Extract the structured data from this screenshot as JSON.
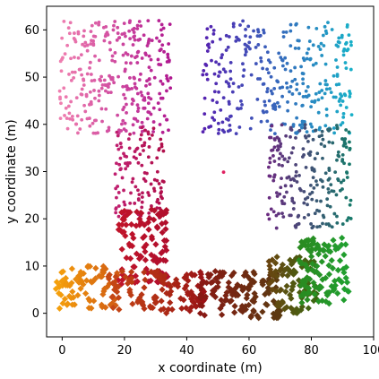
{
  "chart_data": {
    "type": "scatter",
    "title": "",
    "xlabel": "x coordinate (m)",
    "ylabel": "y coordinate (m)",
    "xlim": [
      -5,
      100
    ],
    "ylim": [
      -5,
      65
    ],
    "xticks": [
      0,
      20,
      40,
      60,
      80,
      100
    ],
    "yticks": [
      0,
      10,
      20,
      30,
      40,
      50,
      60
    ],
    "grid": false,
    "legend": "none",
    "description_note": "",
    "clusters": [
      {
        "marker": "circle",
        "color_start": "#f080b0",
        "color_end": "#b01890",
        "x_range": [
          -1,
          35
        ],
        "y_range": [
          38,
          62
        ],
        "count": 320
      },
      {
        "marker": "circle",
        "color_start": "#c02070",
        "color_end": "#b00e4a",
        "x_range": [
          17,
          33
        ],
        "y_range": [
          20,
          40
        ],
        "count": 120
      },
      {
        "marker": "circle",
        "color_start": "#5520b0",
        "color_end": "#18b0c8",
        "x_range": [
          45,
          93
        ],
        "y_range": [
          38,
          62
        ],
        "count": 330
      },
      {
        "marker": "circle",
        "color_start": "#6a2a80",
        "color_end": "#167a6a",
        "x_range": [
          66,
          93
        ],
        "y_range": [
          18,
          40
        ],
        "count": 220
      },
      {
        "marker": "circle",
        "color_start": "#e02060",
        "color_end": "#e02060",
        "x_range": [
          51,
          52
        ],
        "y_range": [
          29,
          30
        ],
        "count": 1
      }
    ],
    "diamond_clusters": [
      {
        "marker": "diamond",
        "color_start": "#f6a20c",
        "color_end": "#d05a12",
        "x_range": [
          -2,
          18
        ],
        "y_range": [
          1,
          10
        ],
        "count": 80
      },
      {
        "marker": "diamond",
        "color_start": "#c0142a",
        "color_end": "#b00e2c",
        "x_range": [
          18,
          34
        ],
        "y_range": [
          6,
          22
        ],
        "count": 110
      },
      {
        "marker": "diamond",
        "color_start": "#c84a14",
        "color_end": "#9a1216",
        "x_range": [
          14,
          46
        ],
        "y_range": [
          0,
          9
        ],
        "count": 120
      },
      {
        "marker": "diamond",
        "color_start": "#8a1814",
        "color_end": "#5a3a10",
        "x_range": [
          44,
          70
        ],
        "y_range": [
          -1,
          9
        ],
        "count": 130
      },
      {
        "marker": "diamond",
        "color_start": "#6a4410",
        "color_end": "#3a6a12",
        "x_range": [
          66,
          82
        ],
        "y_range": [
          0,
          12
        ],
        "count": 90
      },
      {
        "marker": "diamond",
        "color_start": "#2a8a20",
        "color_end": "#20a030",
        "x_range": [
          76,
          92
        ],
        "y_range": [
          2,
          16
        ],
        "count": 110
      }
    ]
  },
  "colors": {
    "axis": "#000000",
    "background": "#ffffff"
  }
}
